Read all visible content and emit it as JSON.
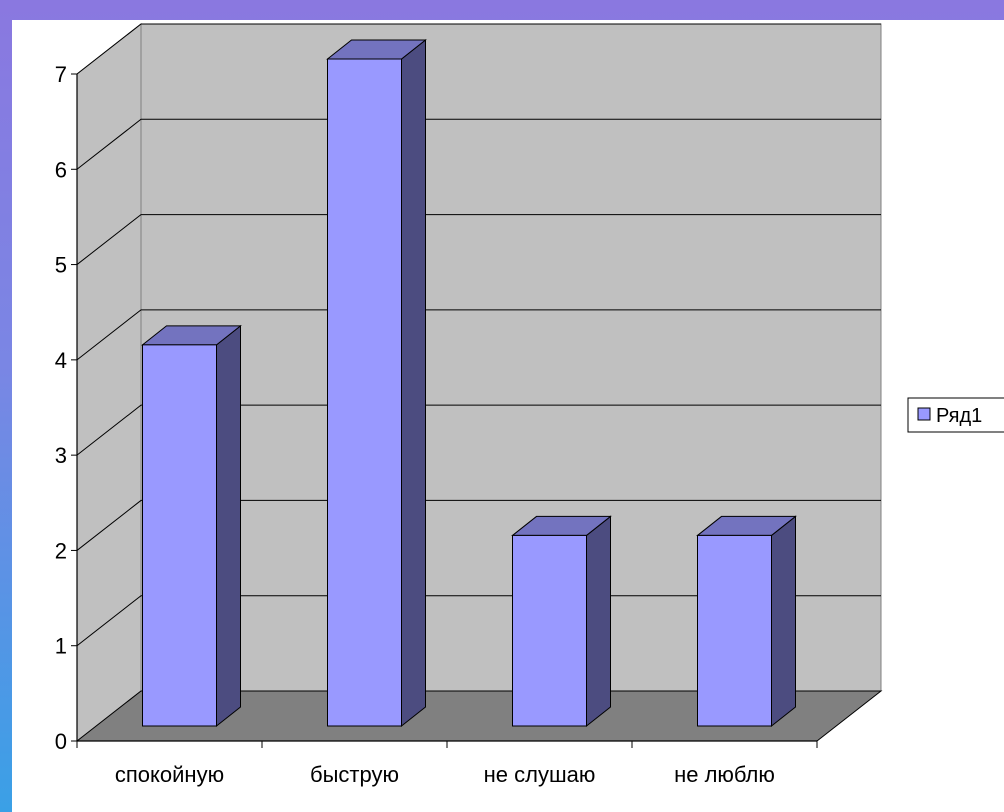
{
  "chart_data": {
    "type": "bar",
    "categories": [
      "спокойную",
      "быструю",
      "не слушаю",
      "не люблю"
    ],
    "series": [
      {
        "name": "Ряд1",
        "values": [
          4,
          7,
          2,
          2
        ]
      }
    ],
    "ylim": [
      0,
      7
    ],
    "yticks": [
      0,
      1,
      2,
      3,
      4,
      5,
      6,
      7
    ],
    "grid": true,
    "legend": "right",
    "title": "",
    "xlabel": "",
    "ylabel": "",
    "colors": {
      "bar_front": "#9999ff",
      "bar_side": "#4c4c80",
      "bar_top": "#7373bf",
      "walls": "#c0c0c0",
      "floor": "#808080"
    }
  }
}
